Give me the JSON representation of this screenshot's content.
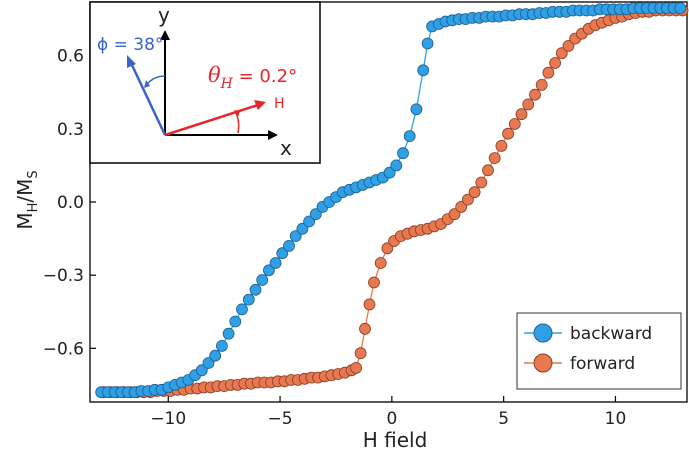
{
  "chart_data": {
    "type": "scatter",
    "xlabel": "H field",
    "ylabel_main": "M",
    "ylabel_sub1": "H",
    "ylabel_mid": "/M",
    "ylabel_sub2": "S",
    "xlim": [
      -13.5,
      13.2
    ],
    "ylim": [
      -0.82,
      0.82
    ],
    "x_ticks": [
      -10,
      -5,
      0,
      5,
      10
    ],
    "x_tick_labels": [
      "−10",
      "−5",
      "0",
      "5",
      "10"
    ],
    "y_ticks": [
      -0.6,
      -0.3,
      0.0,
      0.3,
      0.6
    ],
    "y_tick_labels": [
      "−0.6",
      "−0.3",
      "0.0",
      "0.3",
      "0.6"
    ],
    "grid": false,
    "legend_position": "bottom-right",
    "series": [
      {
        "name": "backward",
        "color": "#2f9fe6",
        "edge": "#1f5f8f",
        "x": [
          -13,
          -12.7,
          -12.4,
          -12.1,
          -11.8,
          -11.5,
          -11.2,
          -10.9,
          -10.6,
          -10.3,
          -10,
          -9.7,
          -9.4,
          -9.1,
          -8.8,
          -8.5,
          -8.2,
          -7.9,
          -7.6,
          -7.3,
          -7,
          -6.7,
          -6.4,
          -6.1,
          -5.8,
          -5.5,
          -5.2,
          -4.9,
          -4.6,
          -4.3,
          -4,
          -3.7,
          -3.4,
          -3.1,
          -2.8,
          -2.5,
          -2.2,
          -1.9,
          -1.6,
          -1.3,
          -1,
          -0.7,
          -0.4,
          -0.1,
          0.2,
          0.5,
          0.8,
          1.1,
          1.4,
          1.6,
          1.8,
          2.1,
          2.4,
          2.7,
          3,
          3.3,
          3.6,
          3.9,
          4.2,
          4.5,
          4.8,
          5.1,
          5.4,
          5.7,
          6,
          6.3,
          6.6,
          6.9,
          7.2,
          7.5,
          7.8,
          8.1,
          8.4,
          8.7,
          9,
          9.3,
          9.6,
          9.9,
          10.2,
          10.5,
          10.8,
          11.1,
          11.4,
          11.7,
          12,
          12.3,
          12.6,
          12.9
        ],
        "y": [
          -0.78,
          -0.78,
          -0.78,
          -0.78,
          -0.78,
          -0.78,
          -0.775,
          -0.775,
          -0.77,
          -0.77,
          -0.76,
          -0.75,
          -0.74,
          -0.73,
          -0.71,
          -0.69,
          -0.66,
          -0.63,
          -0.59,
          -0.54,
          -0.49,
          -0.44,
          -0.4,
          -0.36,
          -0.32,
          -0.28,
          -0.25,
          -0.21,
          -0.18,
          -0.14,
          -0.11,
          -0.08,
          -0.05,
          -0.02,
          0.0,
          0.02,
          0.04,
          0.05,
          0.06,
          0.07,
          0.08,
          0.09,
          0.1,
          0.12,
          0.15,
          0.2,
          0.27,
          0.38,
          0.54,
          0.65,
          0.72,
          0.73,
          0.74,
          0.745,
          0.75,
          0.75,
          0.755,
          0.755,
          0.76,
          0.76,
          0.76,
          0.765,
          0.765,
          0.77,
          0.77,
          0.77,
          0.775,
          0.775,
          0.78,
          0.78,
          0.78,
          0.785,
          0.785,
          0.785,
          0.785,
          0.79,
          0.79,
          0.79,
          0.79,
          0.79,
          0.795,
          0.795,
          0.795,
          0.795,
          0.795,
          0.795,
          0.795,
          0.795
        ]
      },
      {
        "name": "forward",
        "color": "#e8784f",
        "edge": "#8a3d22",
        "x": [
          -12.9,
          -12.6,
          -12.3,
          -12,
          -11.7,
          -11.4,
          -11.1,
          -10.8,
          -10.5,
          -10.2,
          -9.9,
          -9.6,
          -9.3,
          -9,
          -8.7,
          -8.4,
          -8.1,
          -7.8,
          -7.5,
          -7.2,
          -6.9,
          -6.6,
          -6.3,
          -6,
          -5.7,
          -5.4,
          -5.1,
          -4.8,
          -4.5,
          -4.2,
          -3.9,
          -3.6,
          -3.3,
          -3,
          -2.7,
          -2.4,
          -2.1,
          -1.8,
          -1.6,
          -1.4,
          -1.2,
          -1,
          -0.8,
          -0.5,
          -0.2,
          0.1,
          0.4,
          0.7,
          1,
          1.3,
          1.6,
          1.9,
          2.2,
          2.5,
          2.8,
          3.1,
          3.4,
          3.7,
          4,
          4.3,
          4.6,
          4.9,
          5.2,
          5.5,
          5.8,
          6.1,
          6.4,
          6.7,
          7,
          7.3,
          7.6,
          7.9,
          8.2,
          8.5,
          8.8,
          9.1,
          9.4,
          9.7,
          10,
          10.3,
          10.6,
          10.9,
          11.2,
          11.5,
          11.8,
          12.1,
          12.4,
          12.7,
          13
        ],
        "y": [
          -0.78,
          -0.78,
          -0.78,
          -0.78,
          -0.78,
          -0.78,
          -0.78,
          -0.78,
          -0.775,
          -0.775,
          -0.775,
          -0.77,
          -0.77,
          -0.765,
          -0.765,
          -0.76,
          -0.76,
          -0.755,
          -0.755,
          -0.75,
          -0.75,
          -0.745,
          -0.745,
          -0.74,
          -0.74,
          -0.74,
          -0.735,
          -0.735,
          -0.73,
          -0.73,
          -0.725,
          -0.72,
          -0.72,
          -0.715,
          -0.71,
          -0.705,
          -0.7,
          -0.69,
          -0.68,
          -0.62,
          -0.52,
          -0.42,
          -0.33,
          -0.25,
          -0.19,
          -0.16,
          -0.14,
          -0.13,
          -0.12,
          -0.115,
          -0.11,
          -0.1,
          -0.09,
          -0.07,
          -0.05,
          -0.02,
          0.01,
          0.04,
          0.08,
          0.13,
          0.18,
          0.23,
          0.28,
          0.32,
          0.36,
          0.4,
          0.44,
          0.48,
          0.53,
          0.57,
          0.61,
          0.64,
          0.67,
          0.69,
          0.71,
          0.725,
          0.735,
          0.745,
          0.755,
          0.76,
          0.77,
          0.775,
          0.78,
          0.78,
          0.785,
          0.785,
          0.785,
          0.785,
          0.785
        ]
      }
    ]
  },
  "inset": {
    "x_axis_label": "x",
    "y_axis_label": "y",
    "phi_label": "ϕ = 38°",
    "theta_label": "θ",
    "theta_sub": "H",
    "theta_value": " = 0.2°",
    "h_label": "H",
    "phi_color": "#3a64c8",
    "theta_color": "#e8262a"
  }
}
